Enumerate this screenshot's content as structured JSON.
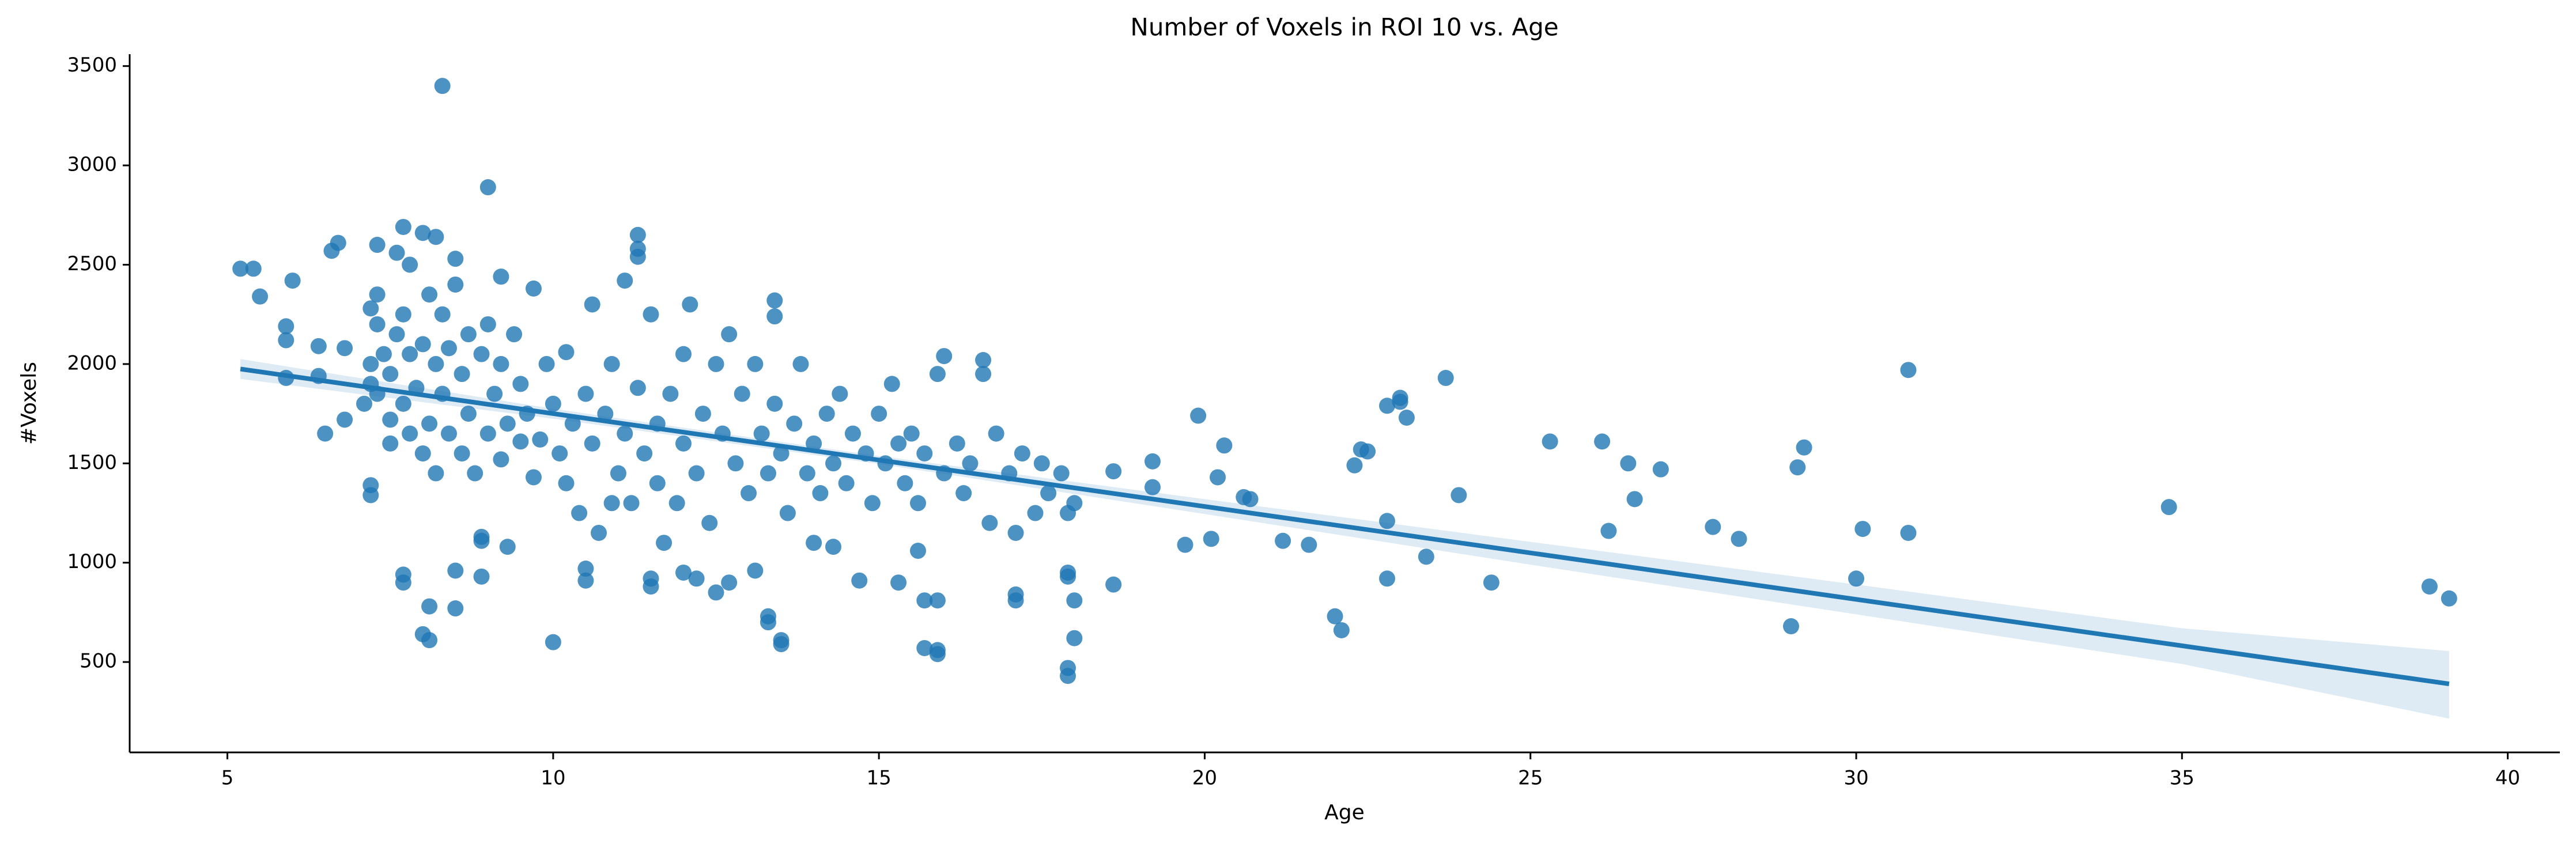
{
  "chart_data": {
    "type": "scatter",
    "title": "Number of Voxels in ROI 10 vs. Age",
    "x_label": "Age",
    "y_label": "#Voxels",
    "color": "#1f77b4",
    "xlim": [
      3.5,
      40.8
    ],
    "ylim": [
      45,
      3560
    ],
    "xticks": [
      5,
      10,
      15,
      20,
      25,
      30,
      35,
      40
    ],
    "yticks": [
      500,
      1000,
      1500,
      2000,
      2500,
      3000,
      3500
    ],
    "x": [
      5.2,
      5.4,
      5.5,
      5.9,
      5.9,
      5.9,
      6.0,
      6.4,
      6.4,
      6.5,
      6.6,
      6.7,
      6.8,
      6.8,
      7.2,
      7.2,
      7.2,
      7.3,
      7.3,
      7.5,
      7.6,
      7.7,
      7.7,
      7.7,
      7.8,
      8.0,
      8.0,
      8.1,
      8.1,
      8.2,
      8.3,
      8.5,
      8.5,
      8.5,
      8.9,
      8.9,
      8.9,
      9.0,
      9.2,
      9.3,
      9.5,
      9.7,
      10.0,
      10.5,
      10.5,
      10.9,
      11.3,
      11.3,
      11.3,
      11.5,
      11.5,
      12.0,
      12.2,
      12.5,
      12.7,
      13.1,
      13.3,
      13.3,
      13.4,
      13.4,
      13.5,
      13.5,
      14.0,
      14.3,
      14.7,
      15.3,
      15.6,
      15.7,
      15.9,
      15.9,
      15.9,
      15.7,
      16.0,
      16.6,
      17.1,
      17.1,
      17.9,
      17.9,
      17.9,
      17.9,
      18.0,
      18.0,
      18.6,
      18.6,
      19.2,
      19.2,
      19.7,
      19.9,
      20.1,
      20.2,
      20.3,
      20.6,
      20.7,
      21.2,
      21.6,
      22.0,
      22.1,
      22.3,
      22.4,
      22.5,
      22.8,
      22.8,
      22.8,
      23.0,
      23.0,
      23.1,
      23.4,
      23.7,
      23.9,
      24.4,
      25.3,
      26.1,
      26.2,
      26.5,
      26.6,
      27.0,
      27.8,
      28.2,
      29.0,
      29.1,
      29.2,
      30.0,
      30.1,
      30.8,
      30.8,
      34.8,
      38.8,
      39.1,
      7.1,
      7.2,
      7.2,
      7.3,
      7.3,
      7.4,
      7.5,
      7.5,
      7.6,
      7.7,
      7.7,
      7.8,
      7.8,
      7.9,
      8.0,
      8.0,
      8.1,
      8.1,
      8.2,
      8.2,
      8.3,
      8.3,
      8.4,
      8.4,
      8.5,
      8.6,
      8.6,
      8.7,
      8.7,
      8.8,
      8.9,
      9.0,
      9.0,
      9.1,
      9.2,
      9.2,
      9.3,
      9.4,
      9.5,
      9.6,
      9.7,
      9.8,
      9.9,
      10.0,
      10.1,
      10.2,
      10.2,
      10.3,
      10.4,
      10.5,
      10.6,
      10.6,
      10.7,
      10.8,
      10.9,
      11.0,
      11.1,
      11.1,
      11.2,
      11.3,
      11.4,
      11.5,
      11.6,
      11.6,
      11.7,
      11.8,
      11.9,
      12.0,
      12.0,
      12.1,
      12.2,
      12.3,
      12.4,
      12.5,
      12.6,
      12.7,
      12.8,
      12.9,
      13.0,
      13.1,
      13.2,
      13.3,
      13.4,
      13.5,
      13.6,
      13.7,
      13.8,
      13.9,
      14.0,
      14.1,
      14.2,
      14.3,
      14.4,
      14.5,
      14.6,
      14.8,
      14.9,
      15.0,
      15.1,
      15.2,
      15.3,
      15.4,
      15.5,
      15.6,
      15.7,
      15.9,
      16.0,
      16.2,
      16.3,
      16.4,
      16.6,
      16.7,
      16.8,
      17.0,
      17.1,
      17.2,
      17.4,
      17.5,
      17.6,
      17.8,
      17.9,
      18.0
    ],
    "values": [
      2480,
      2480,
      2340,
      2190,
      2120,
      1930,
      2420,
      1940,
      2090,
      1650,
      2570,
      2610,
      2080,
      1720,
      1390,
      1340,
      2280,
      2600,
      2350,
      1720,
      2560,
      2690,
      940,
      900,
      2500,
      2660,
      640,
      610,
      780,
      2640,
      3400,
      2530,
      960,
      770,
      1130,
      1110,
      930,
      2890,
      2440,
      1080,
      1610,
      1430,
      600,
      910,
      970,
      1300,
      2650,
      2580,
      2540,
      880,
      920,
      950,
      920,
      850,
      900,
      960,
      730,
      700,
      2320,
      2240,
      610,
      590,
      1100,
      1080,
      910,
      900,
      1060,
      570,
      560,
      540,
      810,
      810,
      2040,
      2020,
      840,
      810,
      950,
      930,
      470,
      430,
      620,
      810,
      890,
      1460,
      1510,
      1380,
      1090,
      1740,
      1120,
      1430,
      1590,
      1330,
      1320,
      1110,
      1090,
      730,
      660,
      1490,
      1570,
      1560,
      1790,
      1210,
      920,
      1830,
      1810,
      1730,
      1030,
      1930,
      1340,
      900,
      1610,
      1610,
      1160,
      1500,
      1320,
      1470,
      1180,
      1120,
      680,
      1480,
      1580,
      920,
      1170,
      1150,
      1970,
      1280,
      880,
      820,
      1800,
      1900,
      2000,
      2200,
      1850,
      2050,
      1600,
      1950,
      2150,
      1800,
      2250,
      1650,
      2050,
      1880,
      2100,
      1550,
      2350,
      1700,
      2000,
      1450,
      2250,
      1850,
      2080,
      1650,
      2400,
      1950,
      1550,
      2150,
      1750,
      1450,
      2050,
      1650,
      2200,
      1850,
      1520,
      2000,
      1700,
      2150,
      1900,
      1750,
      2380,
      1620,
      2000,
      1800,
      1550,
      2060,
      1400,
      1700,
      1250,
      1850,
      1600,
      2300,
      1150,
      1750,
      2000,
      1450,
      2420,
      1650,
      1300,
      1880,
      1550,
      2250,
      1700,
      1400,
      1100,
      1850,
      1300,
      2050,
      1600,
      2300,
      1450,
      1750,
      1200,
      2000,
      1650,
      2150,
      1500,
      1850,
      1350,
      2000,
      1650,
      1450,
      1800,
      1550,
      1250,
      1700,
      2000,
      1450,
      1600,
      1350,
      1750,
      1500,
      1850,
      1400,
      1650,
      1550,
      1300,
      1750,
      1500,
      1900,
      1600,
      1400,
      1650,
      1300,
      1550,
      1950,
      1450,
      1600,
      1350,
      1500,
      1950,
      1200,
      1650,
      1450,
      1150,
      1550,
      1250,
      1500,
      1350,
      1450,
      1250,
      1300
    ],
    "regression": {
      "x": [
        5.2,
        39.1
      ],
      "values": [
        1975,
        390
      ]
    },
    "ci": {
      "x": [
        5.2,
        10,
        15,
        20,
        25,
        30,
        35,
        39.1
      ],
      "upper": [
        2025,
        1775,
        1537,
        1320,
        1105,
        890,
        670,
        555
      ],
      "lower": [
        1925,
        1725,
        1497,
        1245,
        990,
        740,
        490,
        215
      ]
    }
  }
}
